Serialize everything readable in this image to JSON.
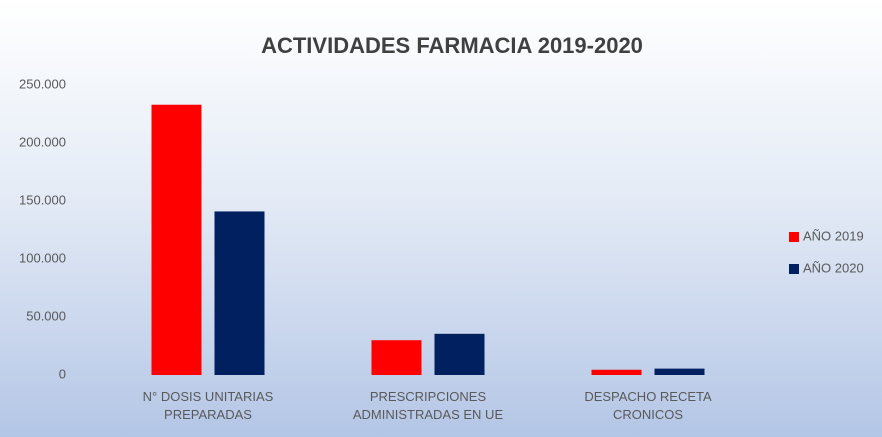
{
  "chart_data": {
    "type": "bar",
    "title": "ACTIVIDADES FARMACIA 2019-2020",
    "categories": [
      "N° DOSIS UNITARIAS PREPARADAS",
      "PRESCRIPCIONES ADMINISTRADAS EN UE",
      "DESPACHO RECETA CRONICOS"
    ],
    "series": [
      {
        "name": "AÑO 2019",
        "color": "#ff0000",
        "values": [
          233000,
          30000,
          4500
        ]
      },
      {
        "name": "AÑO 2020",
        "color": "#002060",
        "values": [
          141000,
          35500,
          5500
        ]
      }
    ],
    "ylim": [
      0,
      250000
    ],
    "yticks": [
      0,
      {
        "value": 50000,
        "label": "50.000"
      },
      {
        "value": 100000,
        "label": "100.000"
      },
      {
        "value": 150000,
        "label": "150.000"
      },
      {
        "value": 200000,
        "label": "200.000"
      },
      {
        "value": 250000,
        "label": "250.000"
      }
    ],
    "legend": "right",
    "grid": false
  }
}
